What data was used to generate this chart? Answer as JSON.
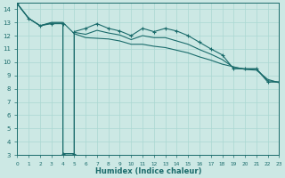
{
  "xlabel": "Humidex (Indice chaleur)",
  "bg_color": "#cce8e4",
  "line_color": "#1a6b6b",
  "grid_color": "#aad8d2",
  "xlim": [
    0,
    23
  ],
  "ylim": [
    3,
    14.5
  ],
  "yticks": [
    3,
    4,
    5,
    6,
    7,
    8,
    9,
    10,
    11,
    12,
    13,
    14
  ],
  "xticks": [
    0,
    1,
    2,
    3,
    4,
    5,
    6,
    7,
    8,
    9,
    10,
    11,
    12,
    13,
    14,
    15,
    16,
    17,
    18,
    19,
    20,
    21,
    22,
    23
  ],
  "line_smooth_x": [
    0,
    1,
    2,
    3,
    4,
    5,
    6,
    7,
    8,
    9,
    10,
    11,
    12,
    13,
    14,
    15,
    16,
    17,
    18,
    19,
    20,
    21,
    22,
    23
  ],
  "line_smooth_y": [
    14.4,
    13.3,
    12.75,
    13.0,
    13.0,
    12.15,
    11.85,
    11.8,
    11.75,
    11.6,
    11.35,
    11.35,
    11.2,
    11.1,
    10.9,
    10.7,
    10.4,
    10.15,
    9.85,
    9.65,
    9.45,
    9.4,
    8.7,
    8.45
  ],
  "line_dip1_x": [
    0,
    1,
    2,
    3,
    4,
    4,
    5,
    5,
    6,
    7,
    8,
    9,
    10,
    11,
    12,
    13,
    14,
    15,
    16,
    17,
    18,
    19,
    20,
    21,
    22,
    23
  ],
  "line_dip1_y": [
    14.4,
    13.3,
    12.75,
    12.9,
    12.9,
    3.1,
    3.1,
    12.3,
    12.55,
    12.9,
    12.55,
    12.35,
    12.0,
    12.55,
    12.3,
    12.55,
    12.35,
    12.0,
    11.5,
    11.0,
    10.55,
    9.5,
    9.5,
    9.5,
    8.5,
    8.5
  ],
  "line_dip2_x": [
    0,
    1,
    2,
    3,
    4,
    4,
    5,
    5,
    6,
    7,
    8,
    9,
    10,
    11,
    12,
    13,
    14,
    15,
    16,
    17,
    18,
    19,
    20,
    21,
    22,
    23
  ],
  "line_dip2_y": [
    14.4,
    13.3,
    12.75,
    12.95,
    12.95,
    3.1,
    3.1,
    12.25,
    12.1,
    12.4,
    12.2,
    12.05,
    11.7,
    12.0,
    11.85,
    11.85,
    11.6,
    11.35,
    10.95,
    10.6,
    10.2,
    9.6,
    9.5,
    9.5,
    8.6,
    8.5
  ]
}
